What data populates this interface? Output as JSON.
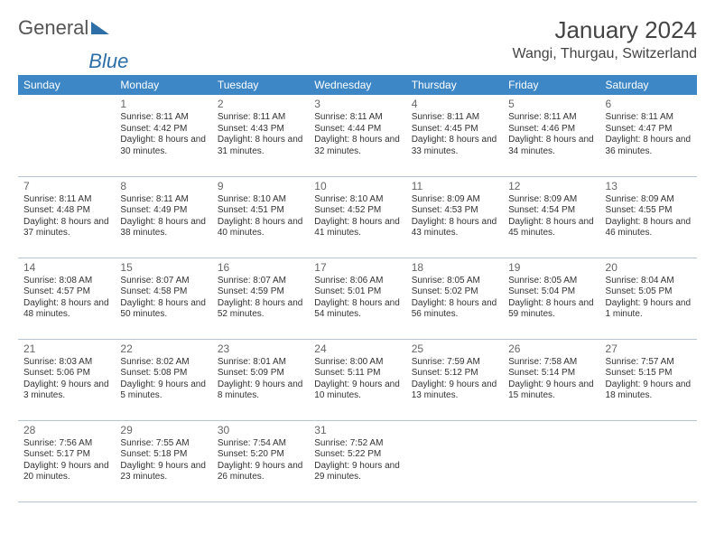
{
  "brand": {
    "part1": "General",
    "part2": "Blue"
  },
  "title": "January 2024",
  "location": "Wangi, Thurgau, Switzerland",
  "colors": {
    "header_bg": "#3d87c7",
    "header_text": "#ffffff",
    "border": "#b7c4d4",
    "text": "#333333",
    "daynum": "#666666"
  },
  "weekday_labels": [
    "Sunday",
    "Monday",
    "Tuesday",
    "Wednesday",
    "Thursday",
    "Friday",
    "Saturday"
  ],
  "grid": {
    "start_weekday": 1,
    "days": [
      {
        "n": 1,
        "sr": "8:11 AM",
        "ss": "4:42 PM",
        "dl": "8 hours and 30 minutes."
      },
      {
        "n": 2,
        "sr": "8:11 AM",
        "ss": "4:43 PM",
        "dl": "8 hours and 31 minutes."
      },
      {
        "n": 3,
        "sr": "8:11 AM",
        "ss": "4:44 PM",
        "dl": "8 hours and 32 minutes."
      },
      {
        "n": 4,
        "sr": "8:11 AM",
        "ss": "4:45 PM",
        "dl": "8 hours and 33 minutes."
      },
      {
        "n": 5,
        "sr": "8:11 AM",
        "ss": "4:46 PM",
        "dl": "8 hours and 34 minutes."
      },
      {
        "n": 6,
        "sr": "8:11 AM",
        "ss": "4:47 PM",
        "dl": "8 hours and 36 minutes."
      },
      {
        "n": 7,
        "sr": "8:11 AM",
        "ss": "4:48 PM",
        "dl": "8 hours and 37 minutes."
      },
      {
        "n": 8,
        "sr": "8:11 AM",
        "ss": "4:49 PM",
        "dl": "8 hours and 38 minutes."
      },
      {
        "n": 9,
        "sr": "8:10 AM",
        "ss": "4:51 PM",
        "dl": "8 hours and 40 minutes."
      },
      {
        "n": 10,
        "sr": "8:10 AM",
        "ss": "4:52 PM",
        "dl": "8 hours and 41 minutes."
      },
      {
        "n": 11,
        "sr": "8:09 AM",
        "ss": "4:53 PM",
        "dl": "8 hours and 43 minutes."
      },
      {
        "n": 12,
        "sr": "8:09 AM",
        "ss": "4:54 PM",
        "dl": "8 hours and 45 minutes."
      },
      {
        "n": 13,
        "sr": "8:09 AM",
        "ss": "4:55 PM",
        "dl": "8 hours and 46 minutes."
      },
      {
        "n": 14,
        "sr": "8:08 AM",
        "ss": "4:57 PM",
        "dl": "8 hours and 48 minutes."
      },
      {
        "n": 15,
        "sr": "8:07 AM",
        "ss": "4:58 PM",
        "dl": "8 hours and 50 minutes."
      },
      {
        "n": 16,
        "sr": "8:07 AM",
        "ss": "4:59 PM",
        "dl": "8 hours and 52 minutes."
      },
      {
        "n": 17,
        "sr": "8:06 AM",
        "ss": "5:01 PM",
        "dl": "8 hours and 54 minutes."
      },
      {
        "n": 18,
        "sr": "8:05 AM",
        "ss": "5:02 PM",
        "dl": "8 hours and 56 minutes."
      },
      {
        "n": 19,
        "sr": "8:05 AM",
        "ss": "5:04 PM",
        "dl": "8 hours and 59 minutes."
      },
      {
        "n": 20,
        "sr": "8:04 AM",
        "ss": "5:05 PM",
        "dl": "9 hours and 1 minute."
      },
      {
        "n": 21,
        "sr": "8:03 AM",
        "ss": "5:06 PM",
        "dl": "9 hours and 3 minutes."
      },
      {
        "n": 22,
        "sr": "8:02 AM",
        "ss": "5:08 PM",
        "dl": "9 hours and 5 minutes."
      },
      {
        "n": 23,
        "sr": "8:01 AM",
        "ss": "5:09 PM",
        "dl": "9 hours and 8 minutes."
      },
      {
        "n": 24,
        "sr": "8:00 AM",
        "ss": "5:11 PM",
        "dl": "9 hours and 10 minutes."
      },
      {
        "n": 25,
        "sr": "7:59 AM",
        "ss": "5:12 PM",
        "dl": "9 hours and 13 minutes."
      },
      {
        "n": 26,
        "sr": "7:58 AM",
        "ss": "5:14 PM",
        "dl": "9 hours and 15 minutes."
      },
      {
        "n": 27,
        "sr": "7:57 AM",
        "ss": "5:15 PM",
        "dl": "9 hours and 18 minutes."
      },
      {
        "n": 28,
        "sr": "7:56 AM",
        "ss": "5:17 PM",
        "dl": "9 hours and 20 minutes."
      },
      {
        "n": 29,
        "sr": "7:55 AM",
        "ss": "5:18 PM",
        "dl": "9 hours and 23 minutes."
      },
      {
        "n": 30,
        "sr": "7:54 AM",
        "ss": "5:20 PM",
        "dl": "9 hours and 26 minutes."
      },
      {
        "n": 31,
        "sr": "7:52 AM",
        "ss": "5:22 PM",
        "dl": "9 hours and 29 minutes."
      }
    ]
  },
  "labels": {
    "sunrise": "Sunrise: ",
    "sunset": "Sunset: ",
    "daylight": "Daylight: "
  }
}
